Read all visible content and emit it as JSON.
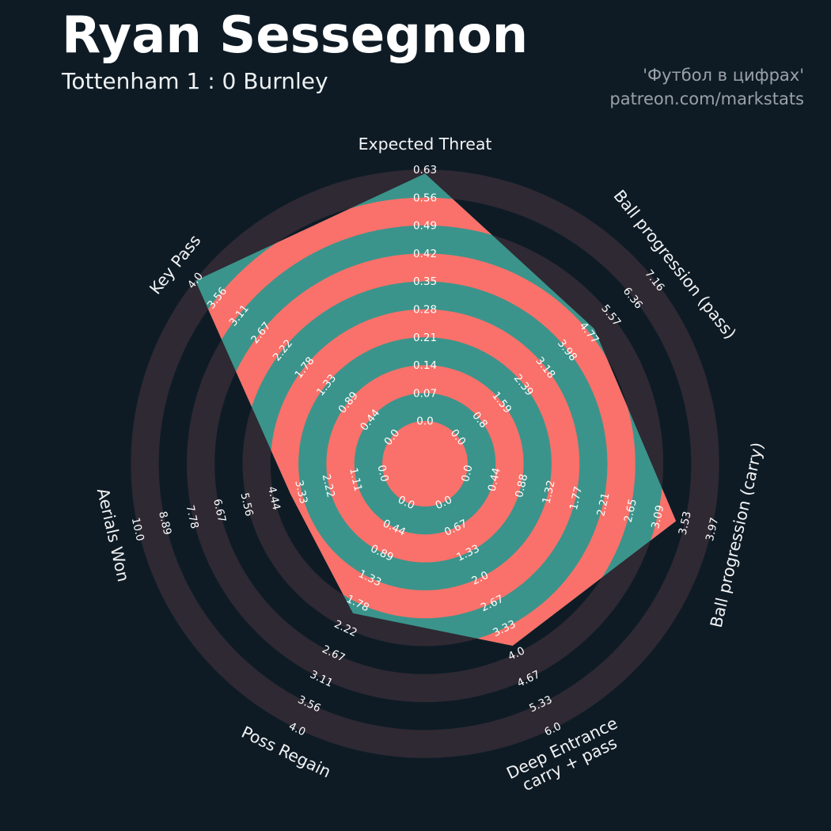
{
  "header": {
    "title": "Ryan Sessegnon",
    "subtitle": "Tottenham 1 : 0 Burnley",
    "credit_line1": "'Футбол в цифрах'",
    "credit_line2": "patreon.com/markstats"
  },
  "chart_data": {
    "type": "radar",
    "title": "Ryan Sessegnon",
    "subtitle": "Tottenham 1 : 0 Burnley",
    "num_rings": 9,
    "axes": [
      {
        "label": [
          "Expected Threat"
        ],
        "max": 0.63,
        "value": 0.62,
        "ticks": [
          "0.0",
          "0.07",
          "0.14",
          "0.21",
          "0.28",
          "0.35",
          "0.42",
          "0.49",
          "0.56",
          "0.63"
        ]
      },
      {
        "label": [
          "Ball progression (pass)"
        ],
        "max": 7.16,
        "value": 4.95,
        "ticks": [
          "0.0",
          "0.8",
          "1.59",
          "2.39",
          "3.18",
          "3.98",
          "4.77",
          "5.57",
          "6.36",
          "7.16"
        ]
      },
      {
        "label": [
          "Ball progression (carry)"
        ],
        "max": 3.97,
        "value": 3.39,
        "ticks": [
          "0.0",
          "0.44",
          "0.88",
          "1.32",
          "1.77",
          "2.21",
          "2.65",
          "3.09",
          "3.53",
          "3.97"
        ]
      },
      {
        "label": [
          "Deep Entrance",
          "carry + pass"
        ],
        "max": 6.0,
        "value": 3.8,
        "ticks": [
          "0.0",
          "0.67",
          "1.33",
          "2.0",
          "2.67",
          "3.33",
          "4.0",
          "4.67",
          "5.33",
          "6.0"
        ]
      },
      {
        "label": [
          "Poss Regain"
        ],
        "max": 4.0,
        "value": 1.96,
        "ticks": [
          "0.0",
          "0.44",
          "0.89",
          "1.33",
          "1.78",
          "2.22",
          "2.67",
          "3.11",
          "3.56",
          "4.0"
        ]
      },
      {
        "label": [
          "Aerials Won"
        ],
        "max": 10.0,
        "value": 3.78,
        "ticks": [
          "0.0",
          "1.11",
          "2.22",
          "3.33",
          "4.44",
          "5.56",
          "6.67",
          "7.78",
          "8.89",
          "10.0"
        ]
      },
      {
        "label": [
          "Key Pass"
        ],
        "max": 4.0,
        "value": 3.99,
        "ticks": [
          "0.0",
          "0.44",
          "0.89",
          "1.33",
          "1.78",
          "2.22",
          "2.67",
          "3.11",
          "3.56",
          "4.0"
        ]
      }
    ],
    "colors": {
      "background": "#0e1b25",
      "outer_ring": "#2e2933",
      "radar_fill": "#3b948b",
      "inner_ring": "#f9716a",
      "tick_color": "#ffffff",
      "axis_label_color": "#f2f3f4"
    }
  }
}
